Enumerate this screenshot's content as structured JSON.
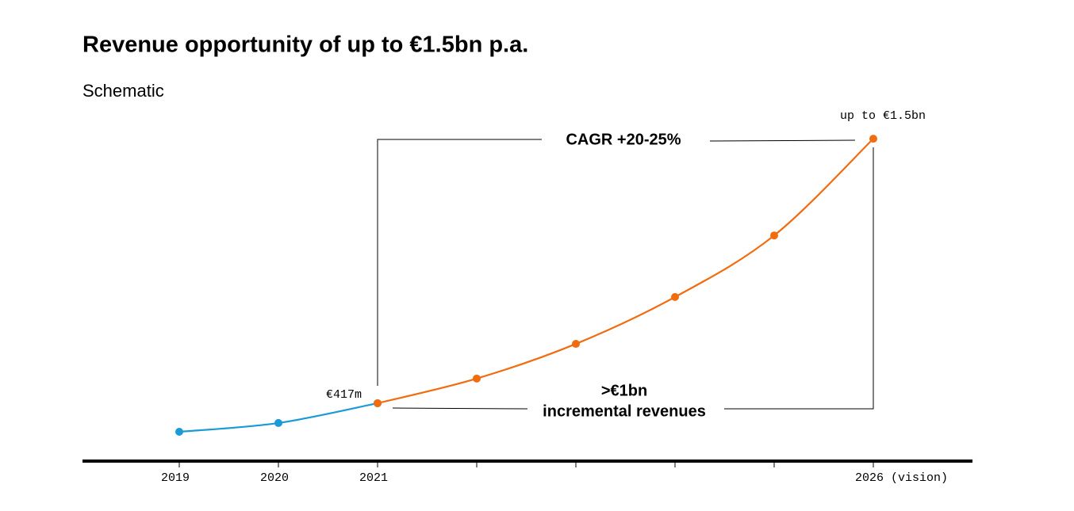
{
  "chart_data": {
    "type": "line",
    "title": "Revenue opportunity of up to €1.5bn p.a.",
    "subtitle": "Schematic",
    "categories": [
      "2019",
      "2020",
      "2021",
      null,
      null,
      null,
      null,
      "2026 (vision)"
    ],
    "series": [
      {
        "color": "#1a9ad6",
        "values": [
          300,
          336,
          417,
          null,
          null,
          null,
          null,
          null
        ],
        "value_labels": [
          null,
          null,
          "€417m",
          null,
          null,
          null,
          null,
          null
        ]
      },
      {
        "color": "#f06c0f",
        "values": [
          null,
          null,
          417,
          518,
          660,
          852,
          1104,
          1500
        ],
        "value_labels": [
          null,
          null,
          null,
          null,
          null,
          null,
          null,
          "up to €1.5bn"
        ]
      }
    ],
    "ylim": [
      180,
      1614
    ],
    "annotations": {
      "cagr": "CAGR +20-25%",
      "increment": [
        ">€1bn",
        "incremental revenues"
      ]
    }
  }
}
